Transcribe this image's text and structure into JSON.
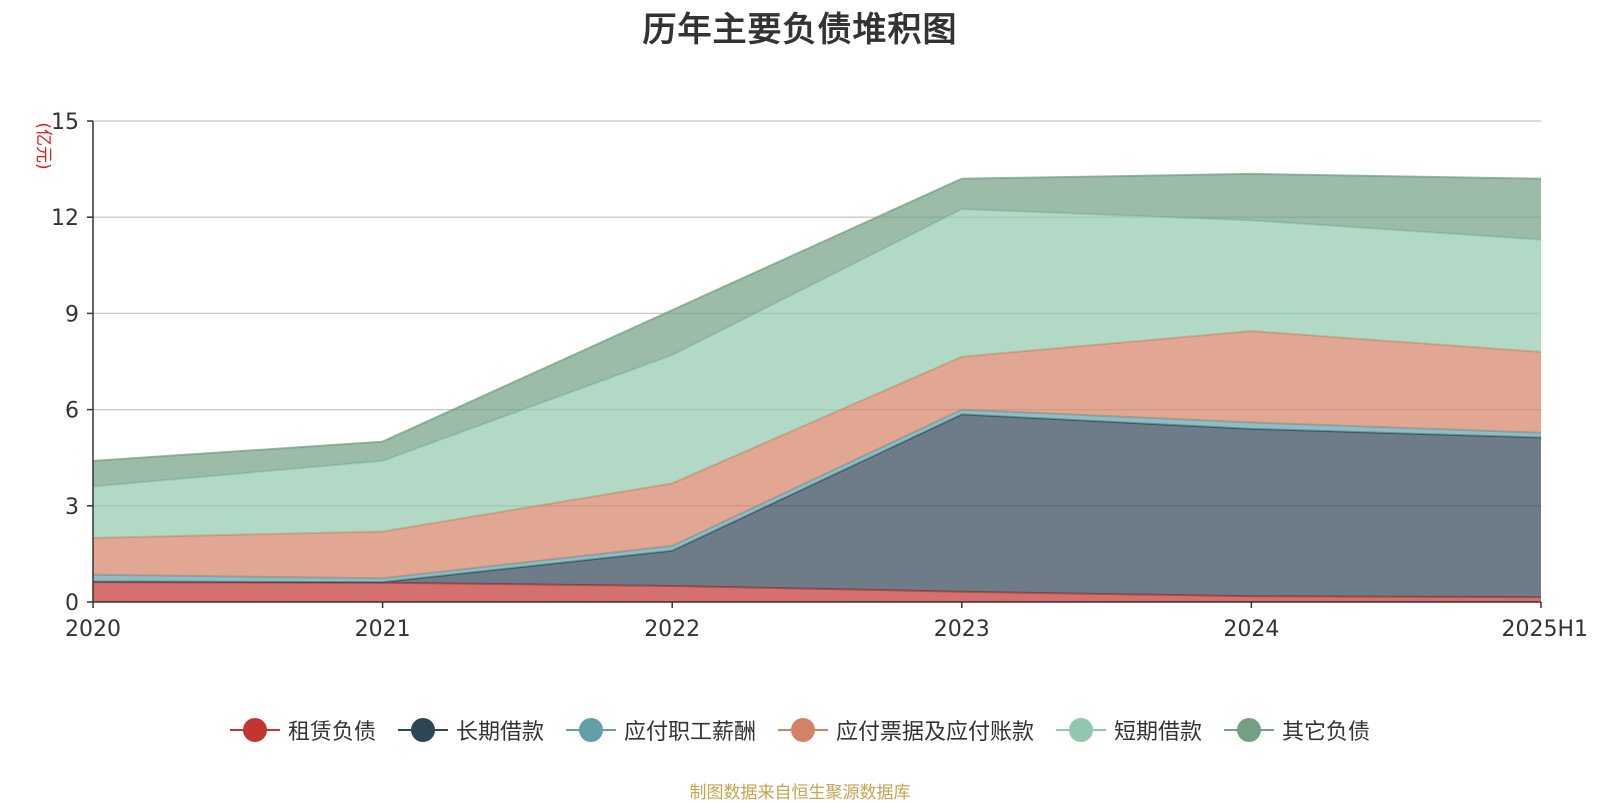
{
  "chart_data": {
    "type": "area",
    "stacked": true,
    "title": "历年主要负债堆积图",
    "unit_label": "(亿元)",
    "source_note": "制图数据来自恒生聚源数据库",
    "categories": [
      "2020",
      "2021",
      "2022",
      "2023",
      "2024",
      "2025H1"
    ],
    "ylim": [
      0,
      15
    ],
    "yticks": [
      0,
      3,
      6,
      9,
      12,
      15
    ],
    "grid": true,
    "legend_position": "bottom",
    "series": [
      {
        "name": "租赁负债",
        "color": "#c23531",
        "values": [
          0.62,
          0.6,
          0.5,
          0.32,
          0.18,
          0.15
        ]
      },
      {
        "name": "长期借款",
        "color": "#2f4554",
        "values": [
          0.02,
          0.02,
          1.1,
          5.53,
          5.22,
          4.98
        ]
      },
      {
        "name": "应付职工薪酬",
        "color": "#61a0a8",
        "values": [
          0.21,
          0.12,
          0.15,
          0.15,
          0.2,
          0.15
        ]
      },
      {
        "name": "应付票据及应付账款",
        "color": "#d48265",
        "values": [
          1.15,
          1.46,
          1.95,
          1.65,
          2.85,
          2.52
        ]
      },
      {
        "name": "短期借款",
        "color": "#91c7ae",
        "values": [
          1.6,
          2.2,
          4.0,
          4.6,
          3.45,
          3.5
        ]
      },
      {
        "name": "其它负债",
        "color": "#749f83",
        "values": [
          0.8,
          0.6,
          1.4,
          0.95,
          1.45,
          1.9
        ]
      }
    ]
  }
}
